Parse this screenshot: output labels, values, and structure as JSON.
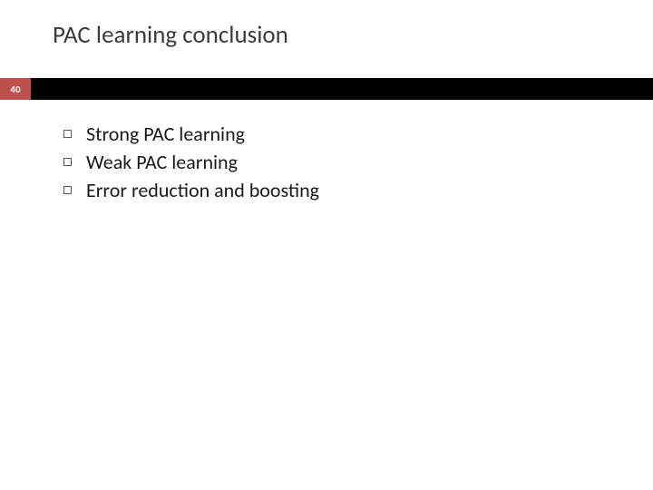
{
  "slide": {
    "title": "PAC learning conclusion",
    "page_number": "40",
    "bullets": [
      "Strong PAC learning",
      "Weak PAC learning",
      "Error reduction and boosting"
    ]
  },
  "style": {
    "background_color": "#ffffff",
    "title_color": "#3b3b3b",
    "title_fontsize": 27,
    "badge_bg": "#c0504d",
    "badge_text_color": "#ffffff",
    "badge_fontsize": 11,
    "bar_color": "#000000",
    "bullet_border_color": "#5a5a5a",
    "bullet_text_color": "#1a1a1a",
    "bullet_fontsize": 22
  }
}
